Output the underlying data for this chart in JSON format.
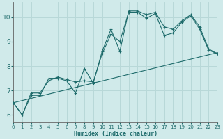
{
  "xlabel": "Humidex (Indice chaleur)",
  "background_color": "#d0eaea",
  "grid_color": "#b8d8d8",
  "line_color": "#1e6b6b",
  "xlim": [
    0,
    23
  ],
  "ylim": [
    5.7,
    10.6
  ],
  "xticks": [
    0,
    1,
    2,
    3,
    4,
    5,
    6,
    7,
    8,
    9,
    10,
    11,
    12,
    13,
    14,
    15,
    16,
    17,
    18,
    19,
    20,
    21,
    22,
    23
  ],
  "yticks": [
    6,
    7,
    8,
    9,
    10
  ],
  "curve1_x": [
    0,
    1,
    2,
    3,
    4,
    5,
    6,
    7,
    8,
    9,
    10,
    11,
    12,
    13,
    14,
    15,
    16,
    17,
    18,
    19,
    20,
    21,
    22,
    23
  ],
  "curve1_y": [
    6.5,
    6.0,
    6.8,
    6.8,
    7.5,
    7.5,
    7.4,
    6.9,
    7.9,
    7.3,
    8.6,
    9.5,
    8.6,
    10.25,
    10.25,
    10.1,
    10.2,
    9.6,
    9.5,
    9.85,
    10.1,
    9.6,
    8.7,
    8.5
  ],
  "curve2_x": [
    0,
    1,
    2,
    3,
    4,
    5,
    6,
    7,
    8,
    9,
    10,
    11,
    12,
    13,
    14,
    15,
    16,
    17,
    18,
    19,
    20,
    21,
    22,
    23
  ],
  "curve2_y": [
    6.5,
    6.0,
    6.9,
    6.9,
    7.4,
    7.55,
    7.45,
    7.35,
    7.4,
    7.35,
    8.5,
    9.3,
    9.0,
    10.2,
    10.2,
    9.95,
    10.15,
    9.25,
    9.35,
    9.8,
    10.05,
    9.5,
    8.65,
    8.5
  ],
  "curve3_x": [
    0,
    23
  ],
  "curve3_y": [
    6.5,
    8.55
  ]
}
